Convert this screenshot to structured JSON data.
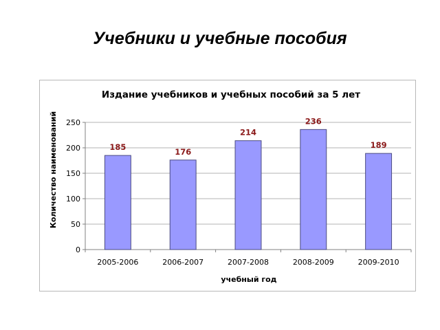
{
  "slide": {
    "title": "Учебники и учебные пособия"
  },
  "chart_data": {
    "type": "bar",
    "title": "Издание учебников и учебных пособий за 5 лет",
    "xlabel": "учебный год",
    "ylabel": "Количество наименований",
    "categories": [
      "2005-2006",
      "2006-2007",
      "2007-2008",
      "2008-2009",
      "2009-2010"
    ],
    "series": [
      {
        "values": [
          185,
          176,
          214,
          236,
          189
        ]
      }
    ],
    "data_labels": [
      "185",
      "176",
      "214",
      "236",
      "189"
    ],
    "ylim": [
      0,
      250
    ],
    "yticks": [
      0,
      50,
      100,
      150,
      200,
      250
    ],
    "ytick_labels": [
      "0",
      "50",
      "100",
      "150",
      "200",
      "250"
    ],
    "grid": true,
    "legend": "none",
    "colors": {
      "bar_fill": "#9999ff",
      "bar_stroke": "#4b4b80",
      "data_label": "#8b1a1a",
      "grid": "#b3b3b3",
      "axis": "#808080"
    }
  }
}
